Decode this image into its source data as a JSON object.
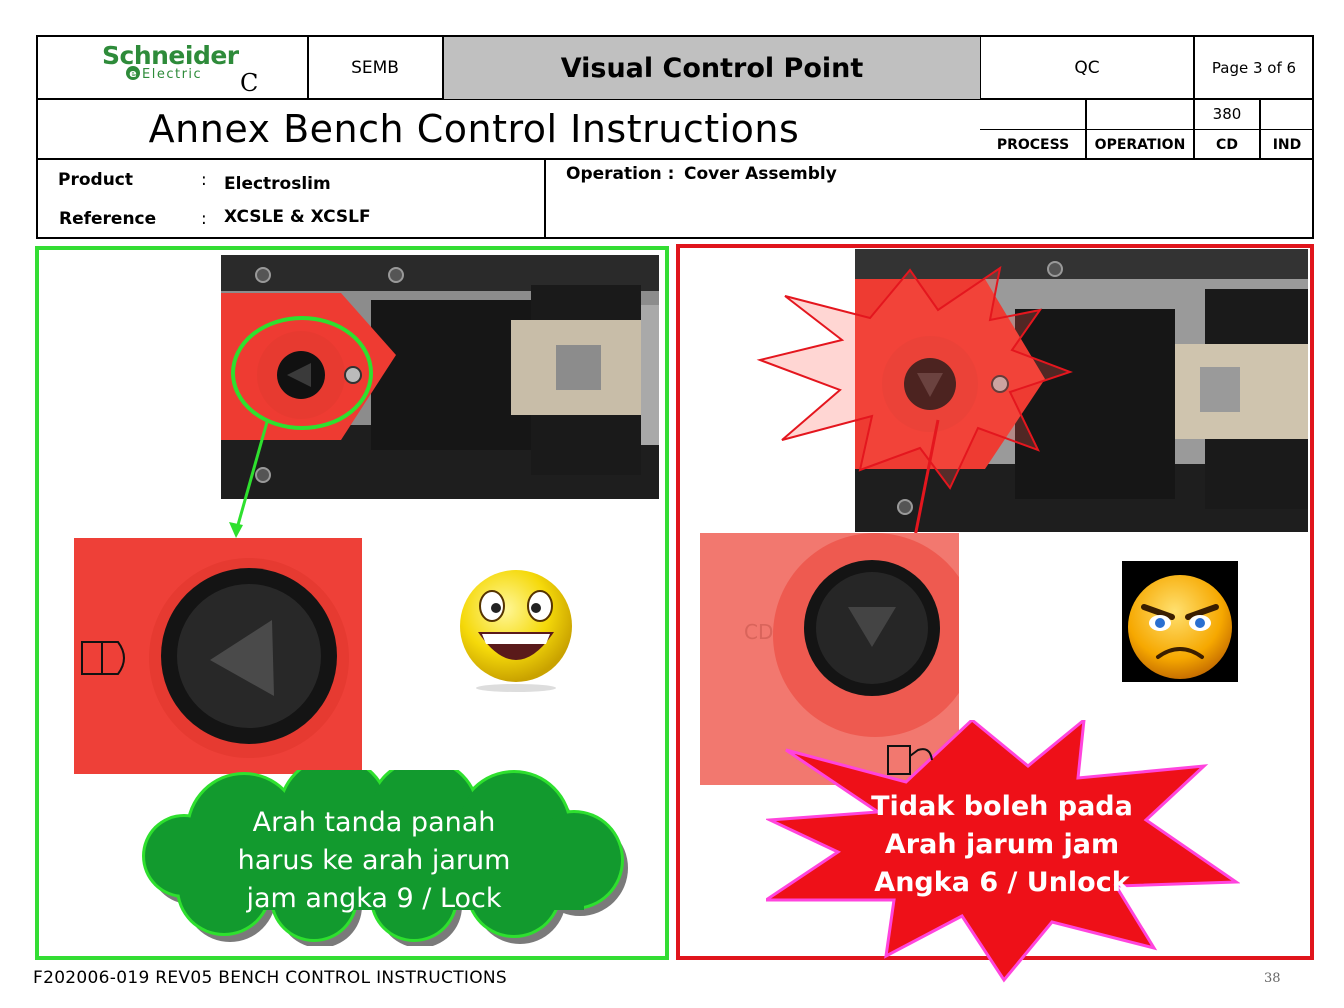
{
  "header": {
    "logo_brand": "Schneider",
    "logo_sub": "Electric",
    "logo_suffix": "C",
    "company": "SEMB",
    "form_title": "Visual Control Point",
    "department": "QC",
    "page": "Page 3 of 6",
    "doc_title": "Annex Bench Control Instructions",
    "cd_value": "380",
    "col_process": "PROCESS",
    "col_operation": "OPERATION",
    "col_cd": "CD",
    "col_ind": "IND"
  },
  "info": {
    "product_label": "Product",
    "product_value": "Electroslim",
    "reference_label": "Reference",
    "reference_value": "XCSLE & XCSLF",
    "colon": ":",
    "operation_label": "Operation :",
    "operation_value": "Cover Assembly"
  },
  "left_panel": {
    "status": "correct",
    "border_color": "#33dd33",
    "callout_lines": [
      "Arah tanda panah",
      "harus ke arah jarum",
      "jam angka 9 / Lock"
    ],
    "callout_color": "#129a2e"
  },
  "right_panel": {
    "status": "incorrect",
    "border_color": "#e0151c",
    "callout_lines": [
      "Tidak boleh pada",
      "Arah jarum jam",
      "Angka 6 / Unlock"
    ],
    "callout_color": "#ee1018"
  },
  "footer": {
    "text": "F202006-019 REV05 BENCH CONTROL INSTRUCTIONS",
    "slide_number": "38"
  }
}
